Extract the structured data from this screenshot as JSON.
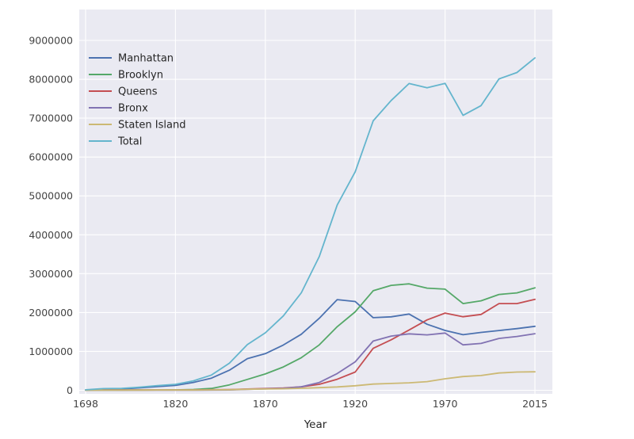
{
  "figure": {
    "background": "#ffffff",
    "plot_background": "#eaeaf2",
    "grid_color": "#ffffff",
    "tick_label_color": "#444444",
    "text_color": "#262626"
  },
  "chart_data": {
    "type": "line",
    "title": "",
    "xlabel": "Year",
    "ylabel": "",
    "grid": true,
    "legend_position": "upper-left",
    "ylim": [
      0,
      9000000
    ],
    "x": [
      1698,
      1771,
      1790,
      1800,
      1810,
      1820,
      1830,
      1840,
      1850,
      1860,
      1870,
      1880,
      1890,
      1900,
      1910,
      1920,
      1930,
      1940,
      1950,
      1960,
      1970,
      1980,
      1990,
      2000,
      2010,
      2015
    ],
    "x_ticks": [
      1698,
      1820,
      1870,
      1920,
      1970,
      2015
    ],
    "y_ticks": [
      0,
      1000000,
      2000000,
      3000000,
      4000000,
      5000000,
      6000000,
      7000000,
      8000000,
      9000000
    ],
    "series": [
      {
        "name": "Manhattan",
        "color": "#4c72b0",
        "values": [
          4937,
          21863,
          33131,
          60515,
          96373,
          123706,
          202589,
          312710,
          515547,
          813669,
          942292,
          1164674,
          1441216,
          1850093,
          2331542,
          2284103,
          1867312,
          1889924,
          1960101,
          1698281,
          1539233,
          1428285,
          1487536,
          1537195,
          1585873,
          1644518
        ]
      },
      {
        "name": "Brooklyn",
        "color": "#55a868",
        "values": [
          2017,
          3623,
          4549,
          5740,
          8303,
          11187,
          20535,
          47613,
          138882,
          279122,
          419921,
          599495,
          838547,
          1166582,
          1634351,
          2018356,
          2560401,
          2698285,
          2738175,
          2627319,
          2602012,
          2230936,
          2300664,
          2465326,
          2504700,
          2636735
        ]
      },
      {
        "name": "Queens",
        "color": "#c44e52",
        "values": [
          3565,
          10980,
          6159,
          6642,
          7444,
          8246,
          9049,
          14480,
          18593,
          32903,
          45468,
          56559,
          87050,
          152999,
          284041,
          469042,
          1079129,
          1297634,
          1550849,
          1809578,
          1986473,
          1891325,
          1951598,
          2229379,
          2230722,
          2339150
        ]
      },
      {
        "name": "Bronx",
        "color": "#8172b2",
        "values": [
          1781,
          3023,
          1761,
          1755,
          2267,
          2782,
          3023,
          5346,
          8032,
          23593,
          37393,
          51980,
          88908,
          200507,
          430980,
          732016,
          1265258,
          1394711,
          1451277,
          1424815,
          1471701,
          1168972,
          1203789,
          1332650,
          1385108,
          1455444
        ]
      },
      {
        "name": "Staten Island",
        "color": "#ccb974",
        "values": [
          727,
          2847,
          3835,
          4563,
          5347,
          6135,
          7082,
          10965,
          15061,
          25492,
          33029,
          38991,
          51693,
          67021,
          85969,
          116531,
          158346,
          174441,
          191555,
          221991,
          295443,
          352121,
          378977,
          443728,
          468730,
          474558
        ]
      },
      {
        "name": "Total",
        "color": "#64b5cd",
        "values": [
          13027,
          42336,
          49435,
          79215,
          119734,
          152056,
          242278,
          391114,
          696115,
          1174779,
          1478103,
          1911699,
          2507414,
          3437202,
          4766883,
          5620048,
          6930446,
          7454995,
          7891957,
          7781984,
          7894862,
          7071639,
          7322564,
          8008278,
          8175133,
          8550405
        ]
      }
    ]
  }
}
